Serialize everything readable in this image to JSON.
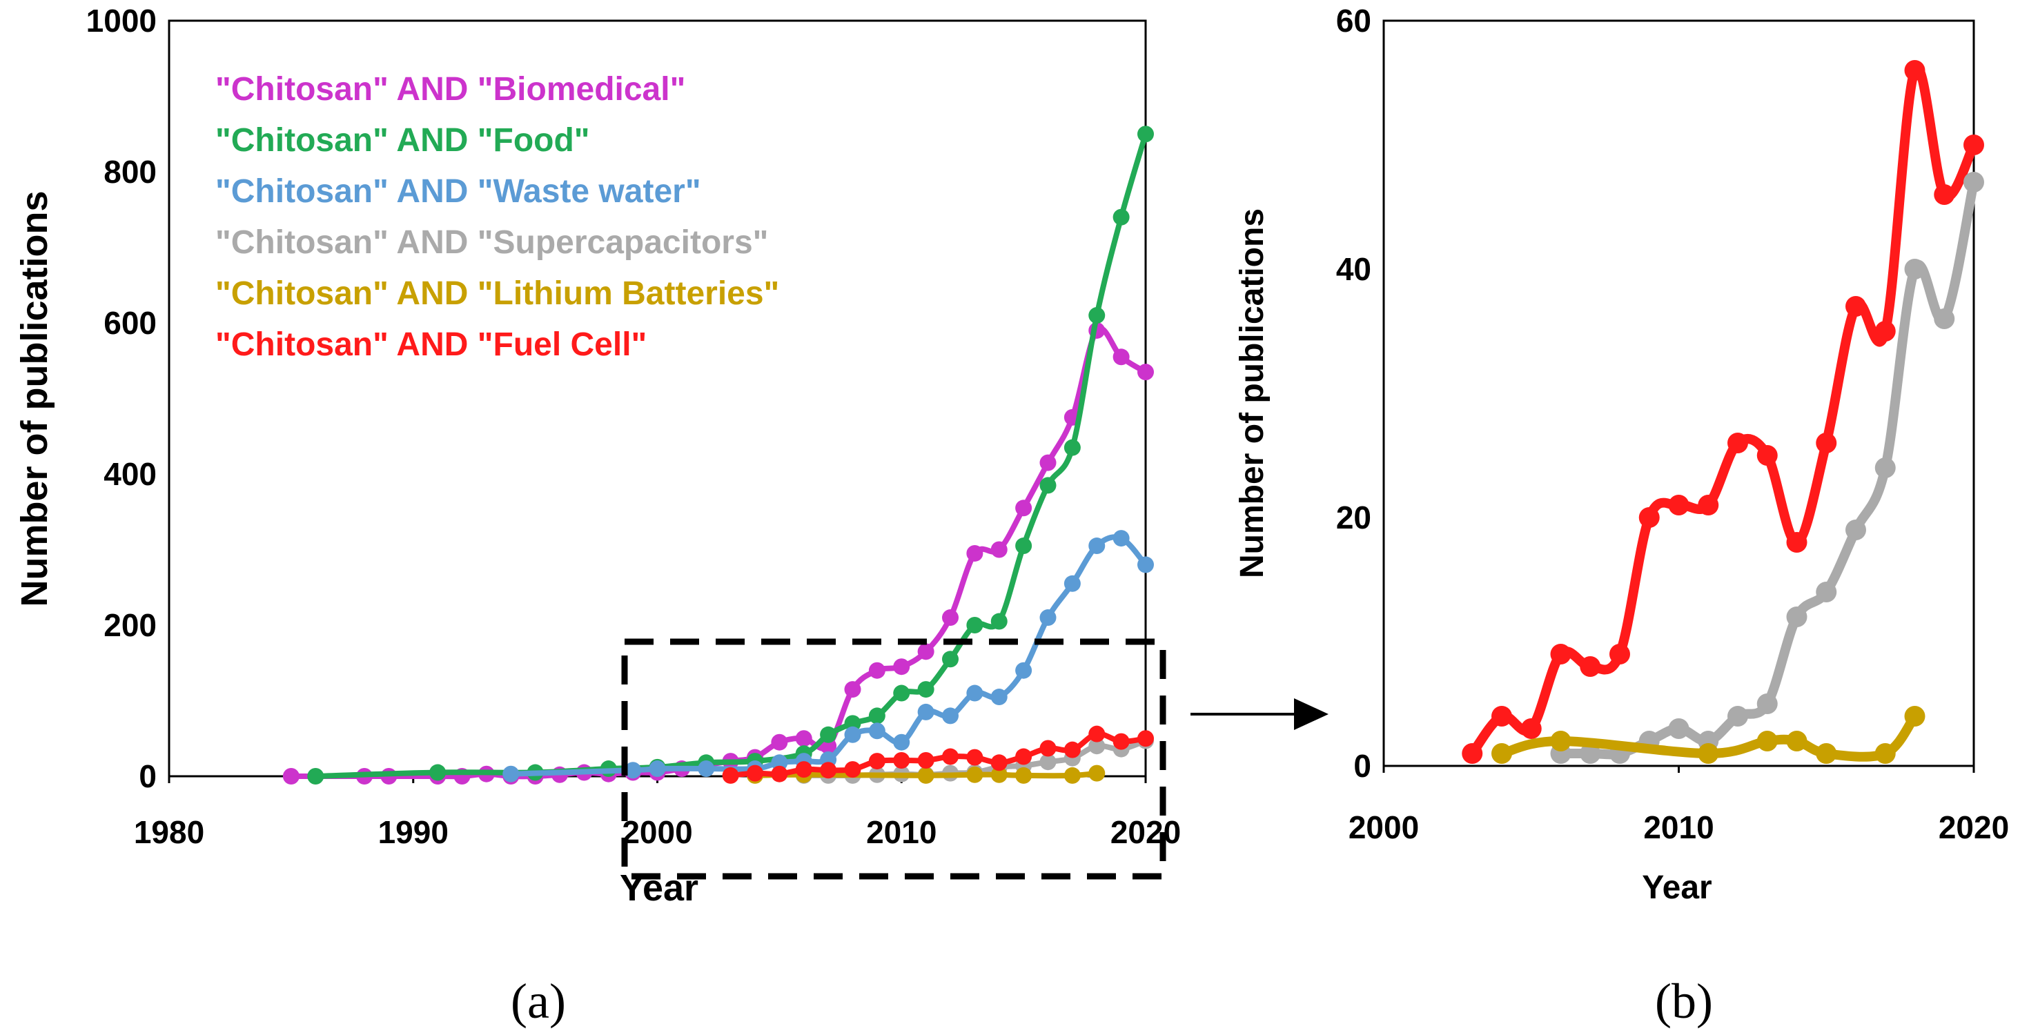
{
  "chart_data": [
    {
      "type": "line",
      "panel_label": "(a)",
      "xlabel": "Year",
      "ylabel": "Number of publications",
      "xlim": [
        1980,
        2020
      ],
      "ylim": [
        0,
        1000
      ],
      "xticks": [
        "1980",
        "1990",
        "2000",
        "2010",
        "2020"
      ],
      "yticks": [
        "0",
        "200",
        "400",
        "600",
        "800",
        "1000"
      ],
      "legend_position": "top-left",
      "series": [
        {
          "name": "\"Chitosan\" AND \"Biomedical\"",
          "color": "#cc33cc",
          "x": [
            1985,
            1988,
            1989,
            1991,
            1992,
            1993,
            1994,
            1995,
            1996,
            1997,
            1998,
            1999,
            2000,
            2001,
            2002,
            2003,
            2004,
            2005,
            2006,
            2007,
            2008,
            2009,
            2010,
            2011,
            2012,
            2013,
            2014,
            2015,
            2016,
            2017,
            2018,
            2019,
            2020
          ],
          "y": [
            0,
            0,
            0,
            0,
            0,
            3,
            0,
            0,
            2,
            5,
            3,
            5,
            5,
            10,
            15,
            20,
            25,
            45,
            50,
            40,
            115,
            140,
            145,
            165,
            210,
            295,
            300,
            355,
            415,
            475,
            590,
            555,
            535
          ]
        },
        {
          "name": "\"Chitosan\" AND \"Food\"",
          "color": "#22aa55",
          "x": [
            1986,
            1991,
            1995,
            1998,
            2000,
            2002,
            2004,
            2006,
            2007,
            2008,
            2009,
            2010,
            2011,
            2012,
            2013,
            2014,
            2015,
            2016,
            2017,
            2018,
            2019,
            2020
          ],
          "y": [
            0,
            5,
            5,
            10,
            12,
            18,
            20,
            30,
            55,
            70,
            80,
            110,
            115,
            155,
            200,
            205,
            305,
            385,
            435,
            610,
            740,
            850
          ]
        },
        {
          "name": "\"Chitosan\" AND \"Waste water\"",
          "color": "#5b9bd5",
          "x": [
            1994,
            1999,
            2000,
            2002,
            2004,
            2005,
            2006,
            2007,
            2008,
            2009,
            2010,
            2011,
            2012,
            2013,
            2014,
            2015,
            2016,
            2017,
            2018,
            2019,
            2020
          ],
          "y": [
            3,
            8,
            10,
            10,
            10,
            18,
            20,
            22,
            55,
            60,
            45,
            85,
            80,
            110,
            105,
            140,
            210,
            255,
            305,
            315,
            280
          ]
        },
        {
          "name": "\"Chitosan\" AND \"Supercapacitors\"",
          "color": "#aaaaaa",
          "x": [
            2006,
            2007,
            2008,
            2009,
            2010,
            2011,
            2012,
            2013,
            2014,
            2015,
            2016,
            2017,
            2018,
            2019,
            2020
          ],
          "y": [
            1,
            1,
            1,
            2,
            3,
            2,
            4,
            5,
            12,
            14,
            19,
            24,
            40,
            36,
            47
          ]
        },
        {
          "name": "\"Chitosan\" AND \"Lithium Batteries\"",
          "color": "#c8a000",
          "x": [
            2004,
            2006,
            2011,
            2013,
            2014,
            2015,
            2017,
            2018
          ],
          "y": [
            1,
            2,
            1,
            2,
            2,
            1,
            1,
            4
          ]
        },
        {
          "name": "\"Chitosan\" AND \"Fuel Cell\"",
          "color": "#ff1a1a",
          "x": [
            2003,
            2004,
            2005,
            2006,
            2007,
            2008,
            2009,
            2010,
            2011,
            2012,
            2013,
            2014,
            2015,
            2016,
            2017,
            2018,
            2019,
            2020
          ],
          "y": [
            1,
            4,
            3,
            9,
            8,
            9,
            20,
            21,
            21,
            26,
            25,
            18,
            26,
            37,
            35,
            56,
            46,
            50
          ]
        }
      ]
    },
    {
      "type": "line",
      "panel_label": "(b)",
      "xlabel": "Year",
      "ylabel": "Number of publications",
      "xlim": [
        2000,
        2020
      ],
      "ylim": [
        0,
        60
      ],
      "xticks": [
        "2000",
        "2010",
        "2020"
      ],
      "yticks": [
        "0",
        "20",
        "40",
        "60"
      ],
      "series": [
        {
          "name": "Fuel Cell",
          "color": "#ff1a1a",
          "x": [
            2003,
            2004,
            2005,
            2006,
            2007,
            2008,
            2009,
            2010,
            2011,
            2012,
            2013,
            2014,
            2015,
            2016,
            2017,
            2018,
            2019,
            2020
          ],
          "y": [
            1,
            4,
            3,
            9,
            8,
            9,
            20,
            21,
            21,
            26,
            25,
            18,
            26,
            37,
            35,
            56,
            46,
            50
          ]
        },
        {
          "name": "Supercapacitors",
          "color": "#aaaaaa",
          "x": [
            2006,
            2007,
            2008,
            2009,
            2010,
            2011,
            2012,
            2013,
            2014,
            2015,
            2016,
            2017,
            2018,
            2019,
            2020
          ],
          "y": [
            1,
            1,
            1,
            2,
            3,
            2,
            4,
            5,
            12,
            14,
            19,
            24,
            40,
            36,
            47
          ]
        },
        {
          "name": "Lithium Batteries",
          "color": "#c8a000",
          "x": [
            2004,
            2006,
            2011,
            2013,
            2014,
            2015,
            2017,
            2018
          ],
          "y": [
            1,
            2,
            1,
            2,
            2,
            1,
            1,
            4
          ]
        }
      ]
    }
  ]
}
